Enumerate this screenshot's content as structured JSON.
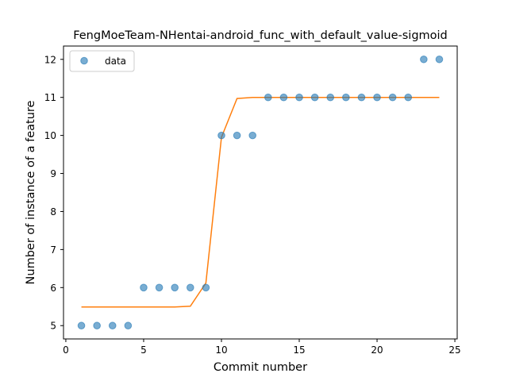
{
  "chart_data": {
    "type": "scatter",
    "title": "FengMoeTeam-NHentai-android_func_with_default_value-sigmoid",
    "xlabel": "Commit number",
    "ylabel": "Number of instance of a feature",
    "xlim": [
      -0.15,
      25.15
    ],
    "ylim": [
      4.65,
      12.35
    ],
    "xticks": [
      0,
      5,
      10,
      15,
      20,
      25
    ],
    "yticks": [
      5,
      6,
      7,
      8,
      9,
      10,
      11,
      12
    ],
    "legend": {
      "position": "top-left",
      "entries": [
        "data"
      ]
    },
    "grid": false,
    "series": [
      {
        "name": "data",
        "kind": "scatter",
        "color": "#1f77b4",
        "x": [
          1,
          2,
          3,
          4,
          5,
          6,
          7,
          8,
          9,
          10,
          11,
          12,
          13,
          14,
          15,
          16,
          17,
          18,
          19,
          20,
          21,
          22,
          23,
          24
        ],
        "y": [
          5,
          5,
          5,
          5,
          6,
          6,
          6,
          6,
          6,
          10,
          10,
          10,
          11,
          11,
          11,
          11,
          11,
          11,
          11,
          11,
          11,
          11,
          12,
          12
        ]
      },
      {
        "kind": "line",
        "color": "#ff7f0e",
        "x": [
          1,
          2,
          3,
          4,
          5,
          6,
          7,
          8,
          9,
          10,
          11,
          12,
          13,
          14,
          15,
          16,
          17,
          18,
          19,
          20,
          21,
          22,
          23,
          24
        ],
        "y": [
          5.49,
          5.49,
          5.49,
          5.49,
          5.49,
          5.49,
          5.49,
          5.51,
          6.12,
          9.95,
          10.97,
          11.0,
          11.0,
          11.0,
          11.0,
          11.0,
          11.0,
          11.0,
          11.0,
          11.0,
          11.0,
          11.0,
          11.0,
          11.0
        ]
      }
    ]
  }
}
